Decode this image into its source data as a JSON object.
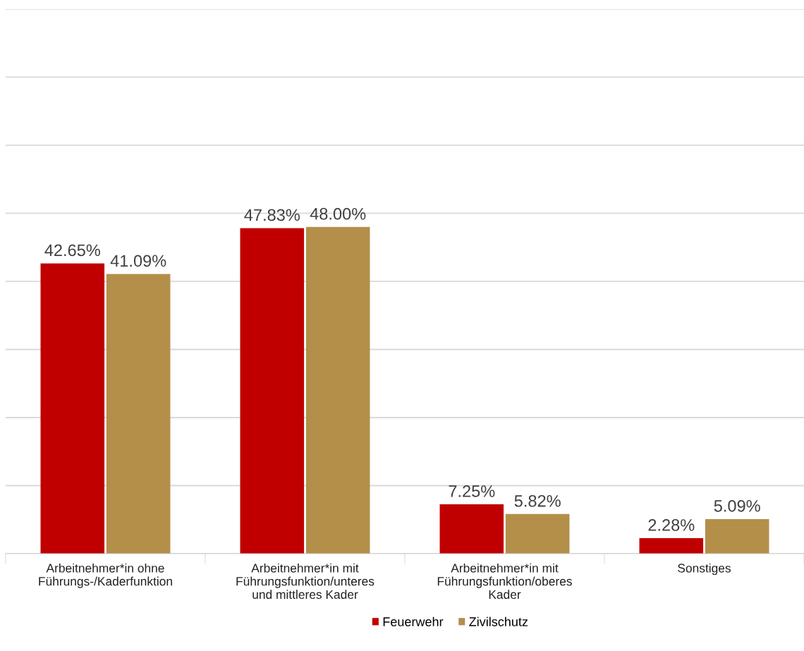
{
  "chart_data": {
    "type": "bar",
    "categories": [
      "Arbeitnehmer*in ohne\nFührungs-/Kaderfunktion",
      "Arbeitnehmer*in mit\nFührungsfunktion/unteres\nund mittleres Kader",
      "Arbeitnehmer*in mit\nFührungsfunktion/oberes\nKader",
      "Sonstiges"
    ],
    "series": [
      {
        "name": "Feuerwehr",
        "color": "#c00000",
        "values": [
          42.65,
          47.83,
          7.25,
          2.28
        ],
        "value_labels": [
          "42.65%",
          "47.83%",
          "7.25%",
          "2.28%"
        ]
      },
      {
        "name": "Zivilschutz",
        "color": "#b38f4a",
        "values": [
          41.09,
          48.0,
          5.82,
          5.09
        ],
        "value_labels": [
          "41.09%",
          "48.00%",
          "5.82%",
          "5.09%"
        ]
      }
    ],
    "ylim": [
      0,
      80
    ],
    "yticks": [
      {
        "value": 0,
        "label": null
      },
      {
        "value": 10,
        "label": null
      },
      {
        "value": 20,
        "label": null
      },
      {
        "value": 30,
        "label": null
      },
      {
        "value": 40,
        "label": null
      },
      {
        "value": 50,
        "label": null
      },
      {
        "value": 60,
        "label": null
      },
      {
        "value": 70,
        "label": null
      },
      {
        "value": 80,
        "label": null
      }
    ],
    "grid": "y",
    "legend": "bottom",
    "tick_labels": "x"
  }
}
